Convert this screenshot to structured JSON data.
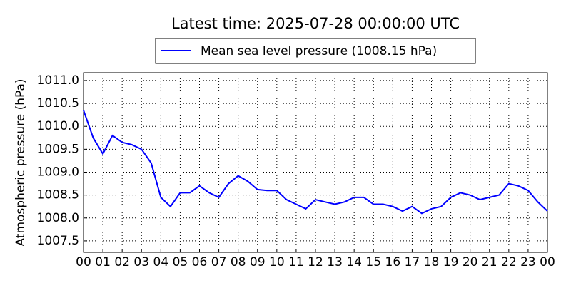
{
  "chart_data": {
    "type": "line",
    "title": "Latest time: 2025-07-28 00:00:00 UTC",
    "y_label": "Atmospheric pressure (hPa)",
    "x": [
      0,
      0.5,
      1,
      1.5,
      2,
      2.5,
      3,
      3.5,
      4,
      4.5,
      5,
      5.5,
      6,
      6.5,
      7,
      7.5,
      8,
      8.5,
      9,
      9.5,
      10,
      10.5,
      11,
      11.5,
      12,
      12.5,
      13,
      13.5,
      14,
      14.5,
      15,
      15.5,
      16,
      16.5,
      17,
      17.5,
      18,
      18.5,
      19,
      19.5,
      20,
      20.5,
      21,
      21.5,
      22,
      22.5,
      23,
      23.5,
      24
    ],
    "series": [
      {
        "name": "Mean sea level pressure (1008.15 hPa)",
        "color": "#0000ff",
        "values": [
          1010.35,
          1009.75,
          1009.4,
          1009.8,
          1009.65,
          1009.6,
          1009.5,
          1009.2,
          1008.45,
          1008.25,
          1008.55,
          1008.55,
          1008.7,
          1008.55,
          1008.45,
          1008.75,
          1008.92,
          1008.8,
          1008.62,
          1008.6,
          1008.6,
          1008.4,
          1008.3,
          1008.2,
          1008.4,
          1008.35,
          1008.3,
          1008.35,
          1008.45,
          1008.45,
          1008.3,
          1008.3,
          1008.25,
          1008.15,
          1008.25,
          1008.1,
          1008.2,
          1008.25,
          1008.45,
          1008.55,
          1008.5,
          1008.4,
          1008.45,
          1008.5,
          1008.75,
          1008.7,
          1008.6,
          1008.35,
          1008.15
        ]
      }
    ],
    "xlim": [
      0,
      24
    ],
    "xticks": [
      {
        "value": 0,
        "label": "00"
      },
      {
        "value": 1,
        "label": "01"
      },
      {
        "value": 2,
        "label": "02"
      },
      {
        "value": 3,
        "label": "03"
      },
      {
        "value": 4,
        "label": "04"
      },
      {
        "value": 5,
        "label": "05"
      },
      {
        "value": 6,
        "label": "06"
      },
      {
        "value": 7,
        "label": "07"
      },
      {
        "value": 8,
        "label": "08"
      },
      {
        "value": 9,
        "label": "09"
      },
      {
        "value": 10,
        "label": "10"
      },
      {
        "value": 11,
        "label": "11"
      },
      {
        "value": 12,
        "label": "12"
      },
      {
        "value": 13,
        "label": "13"
      },
      {
        "value": 14,
        "label": "14"
      },
      {
        "value": 15,
        "label": "15"
      },
      {
        "value": 16,
        "label": "16"
      },
      {
        "value": 17,
        "label": "17"
      },
      {
        "value": 18,
        "label": "18"
      },
      {
        "value": 19,
        "label": "19"
      },
      {
        "value": 20,
        "label": "20"
      },
      {
        "value": 21,
        "label": "21"
      },
      {
        "value": 22,
        "label": "22"
      },
      {
        "value": 23,
        "label": "23"
      },
      {
        "value": 24,
        "label": "00"
      }
    ],
    "ylim": [
      1007.25,
      1011.17
    ],
    "yticks": [
      1007.5,
      {
        "value": 1008,
        "label": "1008.0"
      },
      1008.5,
      {
        "value": 1009,
        "label": "1009.0"
      },
      1009.5,
      {
        "value": 1010,
        "label": "1010.0"
      },
      1010.5,
      {
        "value": 1011,
        "label": "1011.0"
      }
    ],
    "grid": true,
    "legend": "top"
  }
}
